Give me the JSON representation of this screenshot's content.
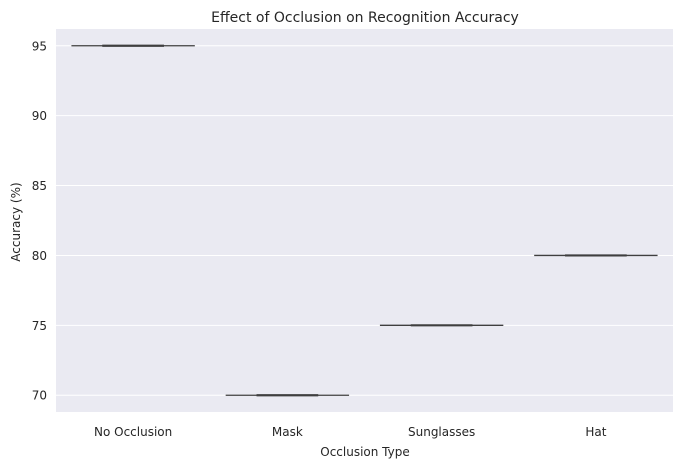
{
  "chart_data": {
    "type": "box",
    "title": "Effect of Occlusion on Recognition Accuracy",
    "xlabel": "Occlusion Type",
    "ylabel": "Accuracy (%)",
    "categories": [
      "No Occlusion",
      "Mask",
      "Sunglasses",
      "Hat"
    ],
    "values": [
      95,
      70,
      75,
      80
    ],
    "ylim": [
      68.8,
      96.2
    ],
    "yticks": [
      70,
      75,
      80,
      85,
      90,
      95
    ],
    "ytick_labels": [
      "70",
      "75",
      "80",
      "85",
      "90",
      "95"
    ],
    "grid": true,
    "legend": "none",
    "colors": {
      "plot_background": "#eaeaf2",
      "grid": "#ffffff",
      "median_line": "#3f3f3f",
      "box_line": "#3f3f3f"
    }
  }
}
